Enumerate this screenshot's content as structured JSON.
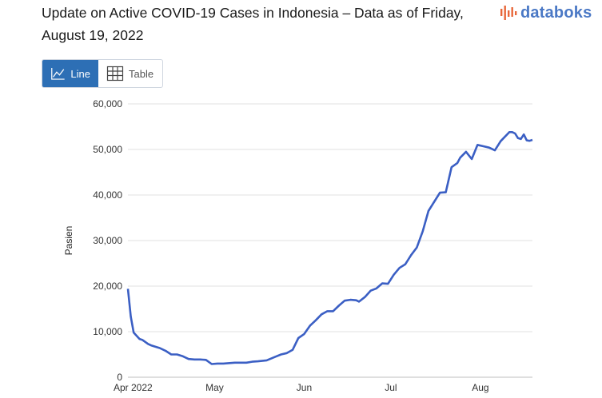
{
  "header": {
    "title": "Update on Active COVID-19 Cases in Indonesia – Data as of Friday, August 19, 2022",
    "logo_text": "databoks",
    "logo_color": "#4a78c5",
    "logo_accent": "#e8673a"
  },
  "toggle": {
    "line_label": "Line",
    "table_label": "Table",
    "active": "line",
    "active_color": "#2d6fb5"
  },
  "chart_data": {
    "type": "line",
    "title": "Update on Active COVID-19 Cases in Indonesia – Data as of Friday, August 19, 2022",
    "xlabel": "",
    "ylabel": "Pasien",
    "ylim": [
      0,
      60000
    ],
    "yticks": [
      0,
      10000,
      20000,
      30000,
      40000,
      50000,
      60000
    ],
    "ytick_labels": [
      "0",
      "10,000",
      "20,000",
      "30,000",
      "40,000",
      "50,000",
      "60,000"
    ],
    "xlim": [
      "2022-04-01",
      "2022-08-19"
    ],
    "xticks": [
      "2022-04-01",
      "2022-05-01",
      "2022-06-01",
      "2022-07-01",
      "2022-08-01"
    ],
    "xtick_labels": [
      "Apr 2022",
      "May",
      "Jun",
      "Jul",
      "Aug"
    ],
    "grid": true,
    "line_color": "#3b5fc4",
    "series": [
      {
        "x": [
          "2022-04-01",
          "2022-04-02",
          "2022-04-03",
          "2022-04-05",
          "2022-04-06",
          "2022-04-08",
          "2022-04-09",
          "2022-04-10",
          "2022-04-12",
          "2022-04-14",
          "2022-04-16",
          "2022-04-18",
          "2022-04-20",
          "2022-04-22",
          "2022-04-24",
          "2022-04-26",
          "2022-04-28",
          "2022-04-30",
          "2022-05-02",
          "2022-05-04",
          "2022-05-08",
          "2022-05-12",
          "2022-05-14",
          "2022-05-16",
          "2022-05-19",
          "2022-05-22",
          "2022-05-24",
          "2022-05-26",
          "2022-05-28",
          "2022-05-30",
          "2022-06-01",
          "2022-06-03",
          "2022-06-05",
          "2022-06-07",
          "2022-06-09",
          "2022-06-11",
          "2022-06-13",
          "2022-06-15",
          "2022-06-17",
          "2022-06-19",
          "2022-06-20",
          "2022-06-22",
          "2022-06-24",
          "2022-06-26",
          "2022-06-28",
          "2022-06-30",
          "2022-07-02",
          "2022-07-04",
          "2022-07-06",
          "2022-07-08",
          "2022-07-10",
          "2022-07-12",
          "2022-07-14",
          "2022-07-16",
          "2022-07-18",
          "2022-07-20",
          "2022-07-22",
          "2022-07-24",
          "2022-07-25",
          "2022-07-27",
          "2022-07-29",
          "2022-07-31",
          "2022-08-02",
          "2022-08-04",
          "2022-08-06",
          "2022-08-08",
          "2022-08-09",
          "2022-08-11",
          "2022-08-12",
          "2022-08-13",
          "2022-08-14",
          "2022-08-15",
          "2022-08-16",
          "2022-08-17",
          "2022-08-18",
          "2022-08-19"
        ],
        "values": [
          19400,
          13300,
          9800,
          8400,
          8200,
          7300,
          7000,
          6800,
          6400,
          5800,
          5000,
          5000,
          4600,
          4000,
          3900,
          3900,
          3800,
          2900,
          3000,
          3000,
          3200,
          3200,
          3400,
          3500,
          3700,
          4500,
          5000,
          5300,
          6000,
          8600,
          9500,
          11300,
          12500,
          13800,
          14500,
          14500,
          15700,
          16800,
          17000,
          16900,
          16600,
          17600,
          19000,
          19500,
          20600,
          20500,
          22500,
          24000,
          24800,
          26800,
          28500,
          32000,
          36500,
          38500,
          40500,
          40600,
          46100,
          47000,
          48200,
          49500,
          47900,
          51000,
          50700,
          50400,
          49800,
          51800,
          52500,
          53800,
          53800,
          53500,
          52500,
          52300,
          53300,
          52000,
          51900,
          52100
        ]
      }
    ]
  }
}
